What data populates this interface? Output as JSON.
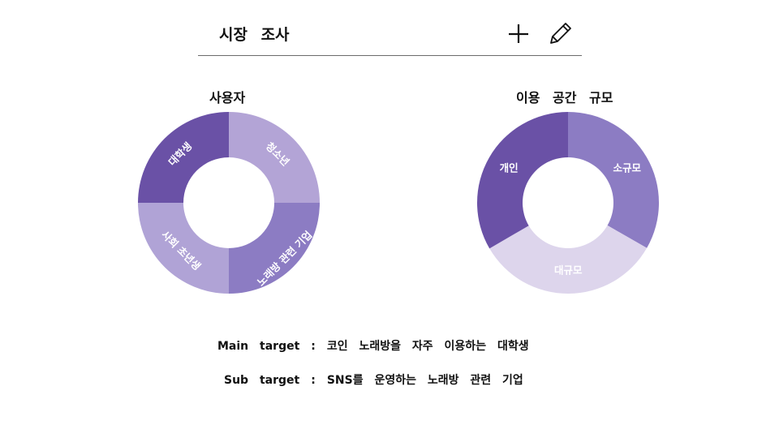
{
  "header": {
    "title": "시장 조사",
    "add_icon": "plus-icon",
    "edit_icon": "pencil-icon"
  },
  "chart_data": [
    {
      "type": "donut",
      "title": "사용자",
      "categories": [
        "청소년",
        "노래방 관련 기업",
        "사회 초년생",
        "대학생"
      ],
      "values": [
        25,
        25,
        25,
        25
      ],
      "colors": [
        "#b3a4d6",
        "#8c7cc3",
        "#b0a3d6",
        "#6a51a6"
      ]
    },
    {
      "type": "donut",
      "title": "이용 공간 규모",
      "categories": [
        "소규모",
        "대규모",
        "개인"
      ],
      "values": [
        33.3,
        33.3,
        33.4
      ],
      "colors": [
        "#8c7cc3",
        "#ddd5ec",
        "#6a51a6"
      ]
    }
  ],
  "targets": {
    "main_label": "Main target",
    "main_text": "코인 노래방을 자주 이용하는 대학생",
    "sub_label": "Sub target",
    "sub_text": "SNS를 운영하는 노래방 관련 기업",
    "separator": ":"
  }
}
